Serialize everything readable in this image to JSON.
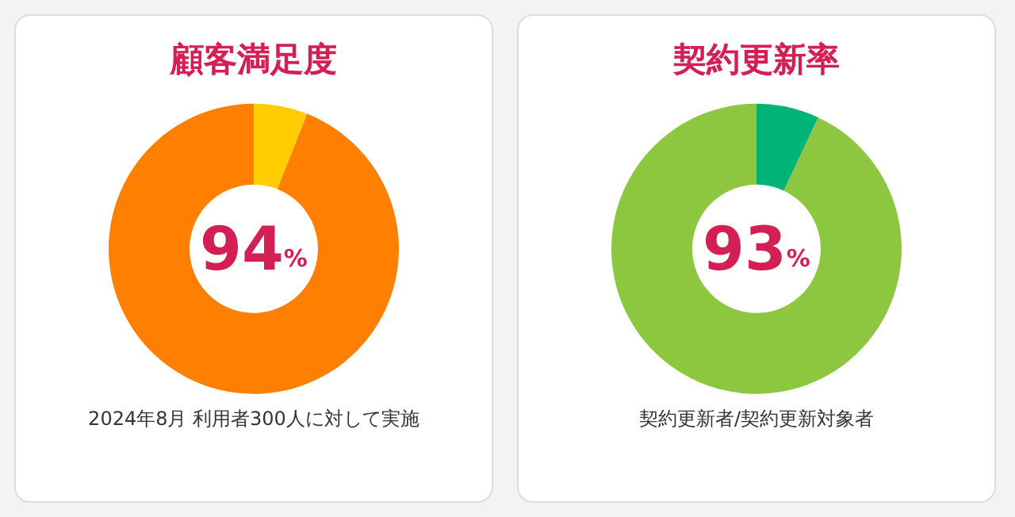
{
  "chart_data": [
    {
      "type": "donut",
      "title": "顧客満足度",
      "categories": [
        null,
        null
      ],
      "values": [
        6,
        94
      ],
      "colors": [
        "#ffcc00",
        "#ff7f00"
      ],
      "value_labels": [
        null,
        "94%"
      ],
      "annotations": [
        "2024年8月 利用者300人に対して実施"
      ]
    },
    {
      "type": "donut",
      "title": "契約更新率",
      "categories": [
        null,
        null
      ],
      "values": [
        7,
        93
      ],
      "colors": [
        "#00b377",
        "#8dc63f"
      ],
      "value_labels": [
        null,
        "93%"
      ],
      "annotations": [
        "契約更新者/契約更新対象者"
      ]
    }
  ]
}
